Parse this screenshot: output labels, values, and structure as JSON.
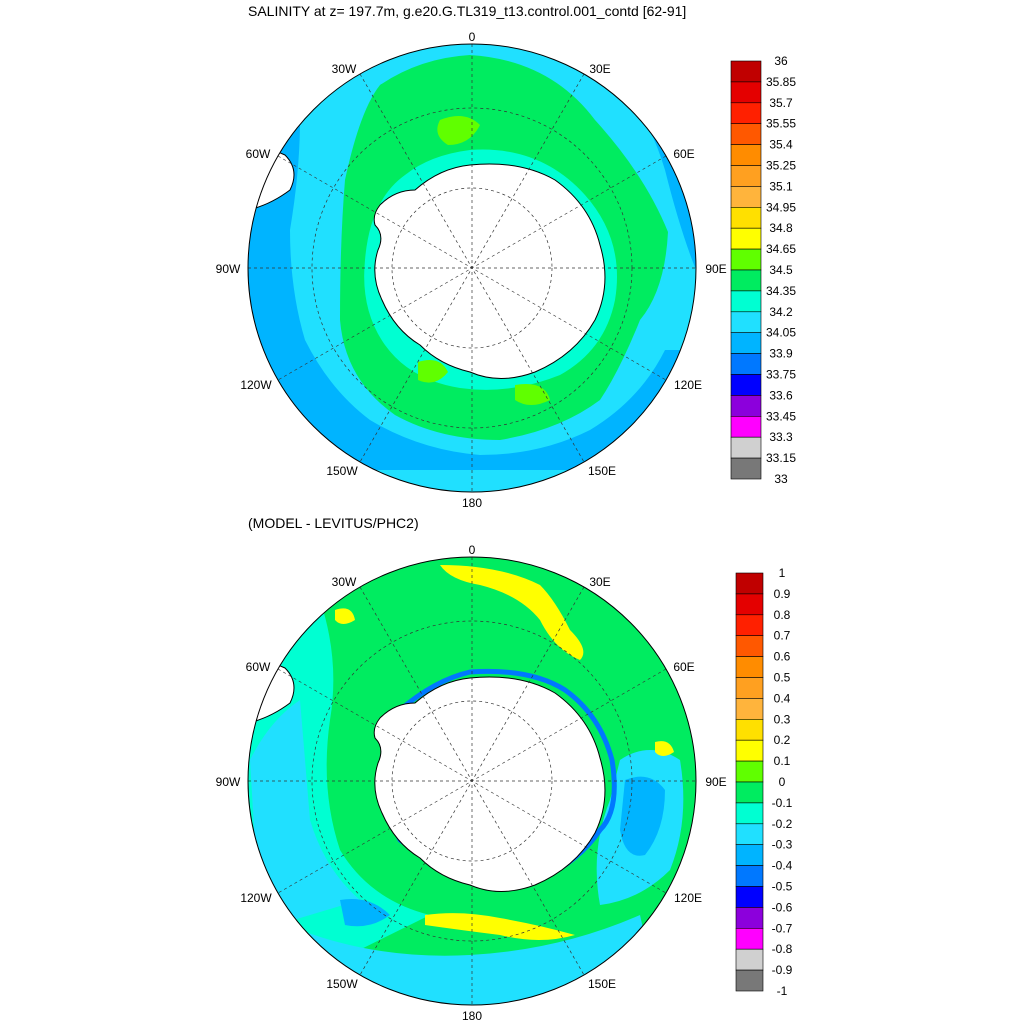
{
  "panel1": {
    "title": "SALINITY at z= 197.7m, g.e20.G.TL319_t13.control.001_contd [62-91]",
    "lon_labels": [
      "0",
      "30E",
      "60E",
      "90E",
      "120E",
      "150E",
      "180",
      "150W",
      "120W",
      "90W",
      "60W",
      "30W"
    ],
    "colorbar": {
      "levels": [
        "36",
        "35.85",
        "35.7",
        "35.55",
        "35.4",
        "35.25",
        "35.1",
        "34.95",
        "34.8",
        "34.65",
        "34.5",
        "34.35",
        "34.2",
        "34.05",
        "33.9",
        "33.75",
        "33.6",
        "33.45",
        "33.3",
        "33.15",
        "33"
      ],
      "colors": [
        "#c00000",
        "#e40000",
        "#ff2000",
        "#ff5800",
        "#ff8c00",
        "#ffa020",
        "#ffb43c",
        "#ffe000",
        "#ffff00",
        "#60ff00",
        "#00ec60",
        "#00ffd2",
        "#20e0ff",
        "#00b4ff",
        "#0078ff",
        "#0000ff",
        "#8c00dc",
        "#ff00ff",
        "#d0d0d0",
        "#787878"
      ]
    }
  },
  "panel2": {
    "title": "(MODEL - LEVITUS/PHC2)",
    "lon_labels": [
      "0",
      "30E",
      "60E",
      "90E",
      "120E",
      "150E",
      "180",
      "150W",
      "120W",
      "90W",
      "60W",
      "30W"
    ],
    "colorbar": {
      "levels": [
        "1",
        "0.9",
        "0.8",
        "0.7",
        "0.6",
        "0.5",
        "0.4",
        "0.3",
        "0.2",
        "0.1",
        "0",
        "-0.1",
        "-0.2",
        "-0.3",
        "-0.4",
        "-0.5",
        "-0.6",
        "-0.7",
        "-0.8",
        "-0.9",
        "-1"
      ],
      "colors": [
        "#c00000",
        "#e40000",
        "#ff2000",
        "#ff5800",
        "#ff8c00",
        "#ffa020",
        "#ffb43c",
        "#ffe000",
        "#ffff00",
        "#60ff00",
        "#00ec60",
        "#00ffd2",
        "#20e0ff",
        "#00b4ff",
        "#0078ff",
        "#0000ff",
        "#8c00dc",
        "#ff00ff",
        "#d0d0d0",
        "#787878"
      ]
    }
  }
}
